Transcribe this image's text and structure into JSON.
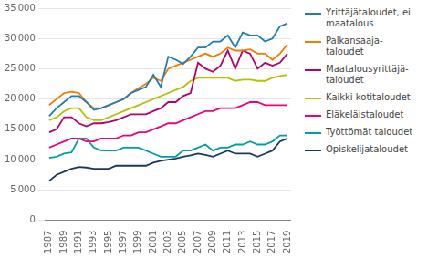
{
  "chart_data": {
    "type": "line",
    "x": [
      1987,
      1988,
      1989,
      1990,
      1991,
      1992,
      1993,
      1994,
      1995,
      1996,
      1997,
      1998,
      1999,
      2000,
      2001,
      2002,
      2003,
      2004,
      2005,
      2006,
      2007,
      2008,
      2009,
      2010,
      2011,
      2012,
      2013,
      2014,
      2015,
      2016,
      2017,
      2018,
      2019
    ],
    "series": [
      {
        "name": "Yrittäjätaloudet, ei\nmaatalous",
        "color": "#1f7cb4",
        "values": [
          17200,
          18500,
          19500,
          20500,
          20500,
          19500,
          18200,
          18500,
          19000,
          19500,
          20000,
          21000,
          21500,
          22000,
          24000,
          22000,
          27000,
          26500,
          25800,
          27000,
          28500,
          28500,
          29500,
          29500,
          30500,
          28500,
          31000,
          30500,
          30500,
          29500,
          30000,
          32000,
          32500
        ]
      },
      {
        "name": "Palkansaaja-\ntaloudet",
        "color": "#f07d00",
        "values": [
          19000,
          20000,
          21000,
          21200,
          21000,
          19500,
          18500,
          18500,
          19000,
          19500,
          20000,
          21000,
          21800,
          22500,
          23500,
          23000,
          25000,
          25500,
          26000,
          26500,
          27000,
          27500,
          27000,
          27500,
          28500,
          28000,
          28000,
          28200,
          27500,
          27500,
          26500,
          27500,
          29000
        ]
      },
      {
        "name": "Maatalousyrittäjä-\ntaloudet",
        "color": "#b4006e",
        "values": [
          14500,
          15000,
          17000,
          17000,
          16000,
          15500,
          16000,
          16000,
          16200,
          16500,
          17000,
          17500,
          17500,
          17500,
          18000,
          18500,
          19500,
          19500,
          20500,
          21000,
          26000,
          25000,
          24500,
          25500,
          28000,
          25000,
          28000,
          27500,
          25000,
          26000,
          25500,
          26000,
          27500
        ]
      },
      {
        "name": "Kaikki kotitaloudet",
        "color": "#b5c200",
        "values": [
          16500,
          17000,
          18000,
          18500,
          18500,
          17000,
          16500,
          16500,
          17000,
          17500,
          18000,
          18500,
          19000,
          19500,
          20000,
          20500,
          21000,
          21500,
          22000,
          23000,
          23500,
          23500,
          23500,
          23500,
          23500,
          23000,
          23200,
          23200,
          23000,
          23000,
          23500,
          23800,
          24000
        ]
      },
      {
        "name": "Eläkeläistaloudet",
        "color": "#f0007d",
        "values": [
          12000,
          12500,
          13000,
          13500,
          13500,
          13000,
          13000,
          13500,
          13500,
          13500,
          14000,
          14000,
          14500,
          14500,
          15000,
          15500,
          16000,
          16000,
          16500,
          17000,
          17500,
          18000,
          18000,
          18500,
          18500,
          18500,
          19000,
          19500,
          19500,
          19000,
          19000,
          19000,
          19000
        ]
      },
      {
        "name": "Työttömät taloudet",
        "color": "#00a0a0",
        "values": [
          10300,
          10500,
          11000,
          11200,
          13500,
          13500,
          12000,
          11500,
          11500,
          11500,
          12000,
          12000,
          12000,
          11500,
          11000,
          10500,
          10500,
          10500,
          11500,
          11500,
          12000,
          12500,
          11500,
          12000,
          12000,
          12500,
          12500,
          13000,
          12500,
          12500,
          13000,
          14000,
          14000
        ]
      },
      {
        "name": "Opiskelijataloudet",
        "color": "#1a3a5c",
        "values": [
          6500,
          7500,
          8000,
          8500,
          8800,
          8700,
          8500,
          8500,
          8500,
          9000,
          9000,
          9000,
          9000,
          9000,
          9500,
          9800,
          10000,
          10200,
          10500,
          10700,
          11000,
          10800,
          10500,
          11000,
          11500,
          11000,
          11000,
          11000,
          10500,
          11000,
          11500,
          13000,
          13500
        ]
      }
    ],
    "xlim": [
      1986.5,
      2019.5
    ],
    "ylim": [
      0,
      35000
    ],
    "xticks": [
      1987,
      1989,
      1991,
      1993,
      1995,
      1997,
      1999,
      2001,
      2003,
      2005,
      2007,
      2009,
      2011,
      2013,
      2015,
      2017,
      2019
    ],
    "yticks": [
      0,
      {
        "value": 5000,
        "label": "5 000"
      },
      {
        "value": 10000,
        "label": "10 000"
      },
      {
        "value": 15000,
        "label": "15 000"
      },
      {
        "value": 20000,
        "label": "20 000"
      },
      {
        "value": 25000,
        "label": "25 000"
      },
      {
        "value": 30000,
        "label": "30 000"
      },
      {
        "value": 35000,
        "label": "35 000"
      }
    ],
    "grid": true,
    "legend": "right"
  }
}
